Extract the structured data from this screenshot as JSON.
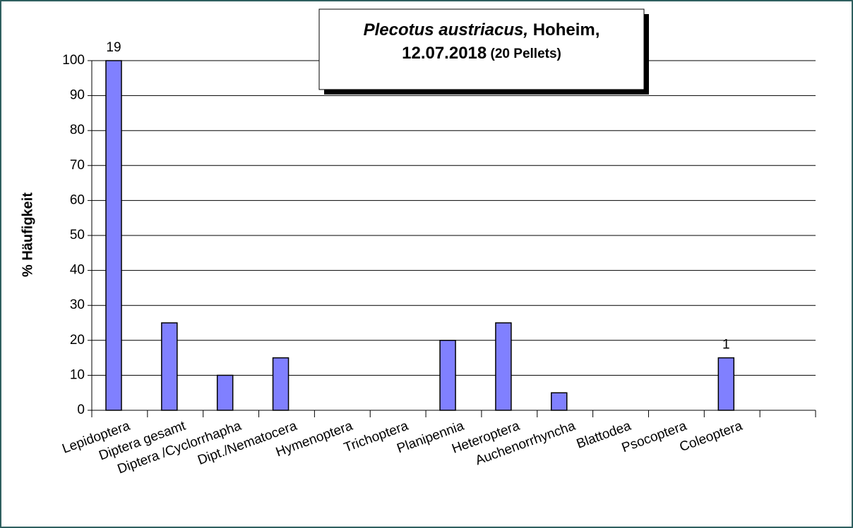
{
  "chart_data": {
    "type": "bar",
    "title": {
      "line1": [
        {
          "text": "Plecotus austriacus,",
          "italic": true
        },
        {
          "text": " Hoheim,",
          "italic": false
        }
      ],
      "line2": [
        {
          "text": "12.07.2018",
          "small": false
        },
        {
          "text": " (20 Pellets)",
          "small": true
        }
      ]
    },
    "ylabel": "% Häufigkeit",
    "categories": [
      "Lepidoptera",
      "Diptera gesamt",
      "Diptera /Cyclorrhapha",
      "Dipt./Nematocera",
      "Hymenoptera",
      "Trichoptera",
      "Planipennia",
      "Heteroptera",
      "Auchenorrhyncha",
      "Blattodea",
      "Psocoptera",
      "Coleoptera",
      null
    ],
    "values": [
      100,
      25,
      10,
      15,
      0,
      0,
      20,
      25,
      5,
      0,
      0,
      15,
      null
    ],
    "counts": [
      19,
      null,
      null,
      null,
      null,
      null,
      null,
      null,
      null,
      null,
      null,
      1,
      null
    ],
    "color": "#8080ff",
    "ylim": [
      0,
      100
    ],
    "yticks": [
      0,
      10,
      20,
      30,
      40,
      50,
      60,
      70,
      80,
      90,
      100
    ],
    "grid": true
  }
}
